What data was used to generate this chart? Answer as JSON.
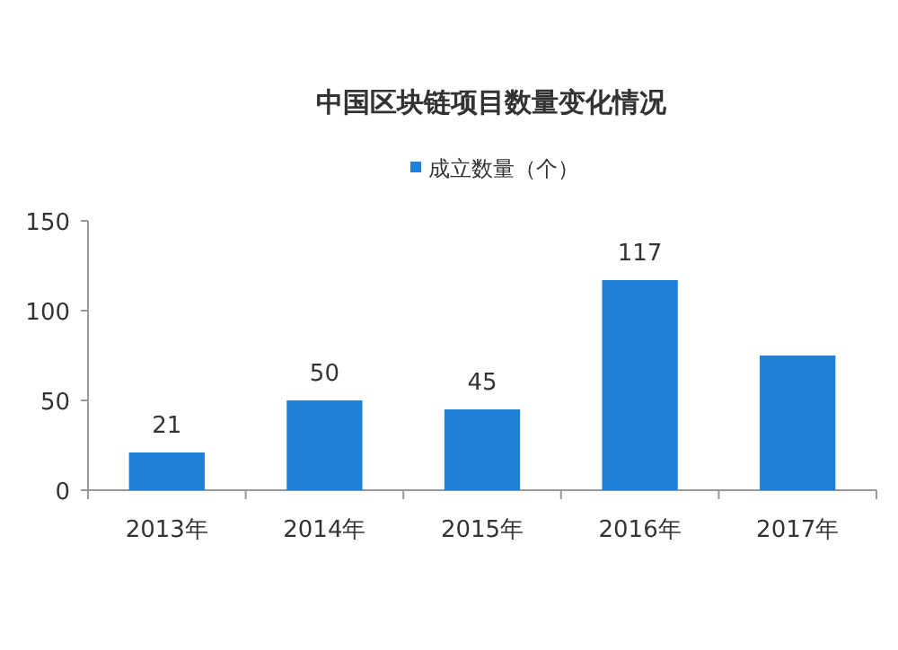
{
  "chart_data": {
    "type": "bar",
    "title": "中国区块链项目数量变化情况",
    "categories": [
      "2013年",
      "2014年",
      "2015年",
      "2016年",
      "2017年"
    ],
    "series": [
      {
        "name": "成立数量（个）",
        "color": "#1f80d8",
        "values": [
          21,
          50,
          45,
          117,
          75
        ],
        "value_labels": [
          "21",
          "50",
          "45",
          "117",
          null
        ]
      }
    ],
    "ylim": [
      0,
      150
    ],
    "yticks": [
      0,
      50,
      100,
      150
    ],
    "legend": "top",
    "grid": false
  }
}
